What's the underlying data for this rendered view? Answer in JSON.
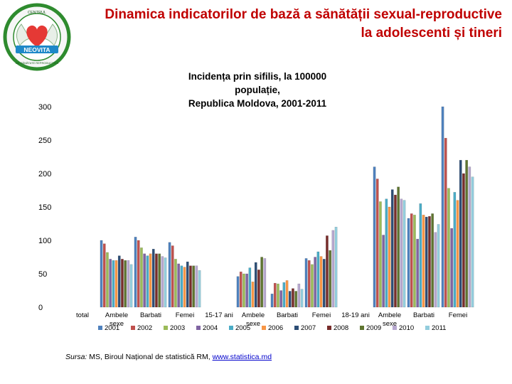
{
  "slide_title": "Dinamica indicatorilor de bază a sănătății sexual-reproductive la adolescenti și tineri",
  "logo": {
    "top_text": "CENTRUL",
    "name": "NEOVITA",
    "bottom_text": "DE SĂNĂTATE REPRODUCTIVĂ",
    "colors": {
      "ring": "#2e8b2e",
      "heart": "#e53935",
      "wings": "#f4f4f4",
      "banner": "#1e88c8"
    }
  },
  "source": {
    "label": "Sursa:",
    "text": " MS, Biroul Național de statistică RM, ",
    "link": "www.statistica.md"
  },
  "chart_data": {
    "type": "bar",
    "title": "Incidența prin sifilis, la 100000 populație, Republica Moldova, 2001-2011",
    "title_lines": [
      "Incidența prin sifilis, la 100000",
      "populație,",
      "Republica Moldova, 2001-2011"
    ],
    "ylim": [
      0,
      300
    ],
    "yticks": [
      0,
      50,
      100,
      150,
      200,
      250,
      300
    ],
    "grid": false,
    "legend_position": "bottom",
    "categories": [
      "total",
      "Ambele sexe",
      "Barbati",
      "Femei",
      "15-17 ani",
      "Ambele sexe",
      "Barbati",
      "Femei",
      "18-19 ani",
      "Ambele sexe",
      "Barbati",
      "Femei"
    ],
    "series": [
      {
        "name": "2001",
        "color": "#4f81bd",
        "values": [
          null,
          100,
          105,
          97,
          null,
          46,
          20,
          73,
          null,
          210,
          133,
          300
        ]
      },
      {
        "name": "2002",
        "color": "#c0504d",
        "values": [
          null,
          95,
          100,
          92,
          null,
          53,
          36,
          70,
          null,
          192,
          140,
          253
        ]
      },
      {
        "name": "2003",
        "color": "#9bbb59",
        "values": [
          null,
          82,
          89,
          72,
          null,
          50,
          35,
          64,
          null,
          158,
          138,
          178
        ]
      },
      {
        "name": "2004",
        "color": "#8064a2",
        "values": [
          null,
          72,
          80,
          65,
          null,
          50,
          25,
          75,
          null,
          108,
          102,
          118
        ]
      },
      {
        "name": "2005",
        "color": "#4bacc6",
        "values": [
          null,
          70,
          77,
          62,
          null,
          59,
          37,
          83,
          null,
          162,
          155,
          172
        ]
      },
      {
        "name": "2006",
        "color": "#f79646",
        "values": [
          null,
          70,
          80,
          60,
          null,
          38,
          40,
          76,
          null,
          150,
          138,
          160
        ]
      },
      {
        "name": "2007",
        "color": "#2c4d75",
        "values": [
          null,
          77,
          87,
          68,
          null,
          67,
          24,
          72,
          null,
          176,
          135,
          220
        ]
      },
      {
        "name": "2008",
        "color": "#772c2a",
        "values": [
          null,
          72,
          80,
          62,
          null,
          56,
          28,
          107,
          null,
          168,
          136,
          200
        ]
      },
      {
        "name": "2009",
        "color": "#5f7530",
        "values": [
          null,
          70,
          80,
          62,
          null,
          75,
          24,
          85,
          null,
          180,
          140,
          220
        ]
      },
      {
        "name": "2010",
        "color": "#b7a8cf",
        "values": [
          null,
          70,
          76,
          62,
          null,
          73,
          35,
          115,
          null,
          162,
          112,
          210
        ]
      },
      {
        "name": "2011",
        "color": "#93cddd",
        "values": [
          null,
          64,
          74,
          55,
          null,
          null,
          27,
          120,
          null,
          160,
          124,
          195
        ]
      }
    ]
  }
}
